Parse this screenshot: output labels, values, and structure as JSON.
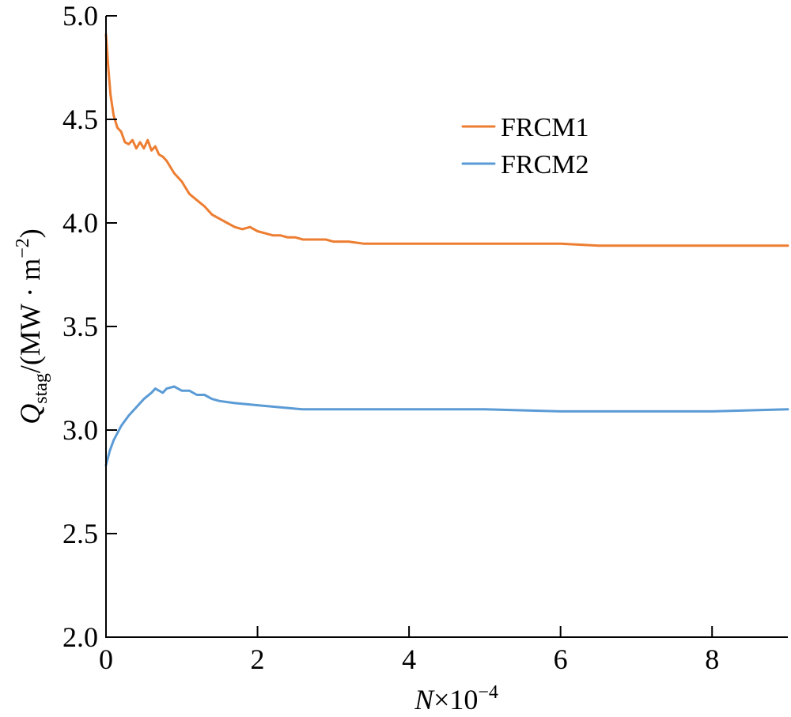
{
  "chart_data": {
    "type": "line",
    "xlabel": {
      "base": "N",
      "suffix": "×10",
      "exponent": "−4"
    },
    "ylabel": {
      "q": "Q",
      "sub": "stag",
      "unit_open": "/(MW · m",
      "unit_exp": "−2",
      "unit_close": ")"
    },
    "xlim": [
      0,
      9
    ],
    "ylim": [
      2.0,
      5.0
    ],
    "x_ticks": [
      0,
      2,
      4,
      6,
      8
    ],
    "x_tick_labels": [
      "0",
      "2",
      "4",
      "6",
      "8"
    ],
    "y_ticks": [
      2.0,
      2.5,
      3.0,
      3.5,
      4.0,
      4.5,
      5.0
    ],
    "y_tick_labels": [
      "2.0",
      "2.5",
      "3.0",
      "3.5",
      "4.0",
      "4.5",
      "5.0"
    ],
    "legend_position": "top-right",
    "grid": false,
    "series": [
      {
        "name": "FRCM1",
        "color": "#ed7d31",
        "x": [
          0.0,
          0.03,
          0.06,
          0.1,
          0.15,
          0.2,
          0.25,
          0.3,
          0.35,
          0.4,
          0.45,
          0.5,
          0.55,
          0.6,
          0.65,
          0.7,
          0.75,
          0.8,
          0.9,
          1.0,
          1.1,
          1.2,
          1.3,
          1.4,
          1.5,
          1.6,
          1.7,
          1.8,
          1.9,
          2.0,
          2.1,
          2.2,
          2.3,
          2.4,
          2.5,
          2.6,
          2.7,
          2.8,
          2.9,
          3.0,
          3.2,
          3.4,
          3.6,
          3.8,
          4.0,
          4.5,
          5.0,
          5.5,
          6.0,
          6.5,
          7.0,
          7.5,
          8.0,
          8.5,
          9.0
        ],
        "y": [
          4.91,
          4.75,
          4.62,
          4.52,
          4.46,
          4.44,
          4.39,
          4.38,
          4.4,
          4.36,
          4.39,
          4.36,
          4.4,
          4.35,
          4.37,
          4.33,
          4.32,
          4.3,
          4.24,
          4.2,
          4.14,
          4.11,
          4.08,
          4.04,
          4.02,
          4.0,
          3.98,
          3.97,
          3.98,
          3.96,
          3.95,
          3.94,
          3.94,
          3.93,
          3.93,
          3.92,
          3.92,
          3.92,
          3.92,
          3.91,
          3.91,
          3.9,
          3.9,
          3.9,
          3.9,
          3.9,
          3.9,
          3.9,
          3.9,
          3.89,
          3.89,
          3.89,
          3.89,
          3.89,
          3.89
        ]
      },
      {
        "name": "FRCM2",
        "color": "#5b9bd5",
        "x": [
          0.0,
          0.05,
          0.1,
          0.2,
          0.3,
          0.4,
          0.5,
          0.6,
          0.65,
          0.7,
          0.75,
          0.8,
          0.9,
          1.0,
          1.1,
          1.2,
          1.3,
          1.4,
          1.5,
          1.7,
          2.0,
          2.3,
          2.6,
          3.0,
          3.5,
          4.0,
          5.0,
          6.0,
          7.0,
          8.0,
          9.0
        ],
        "y": [
          2.83,
          2.9,
          2.95,
          3.02,
          3.07,
          3.11,
          3.15,
          3.18,
          3.2,
          3.19,
          3.18,
          3.2,
          3.21,
          3.19,
          3.19,
          3.17,
          3.17,
          3.15,
          3.14,
          3.13,
          3.12,
          3.11,
          3.1,
          3.1,
          3.1,
          3.1,
          3.1,
          3.09,
          3.09,
          3.09,
          3.1
        ]
      }
    ]
  }
}
